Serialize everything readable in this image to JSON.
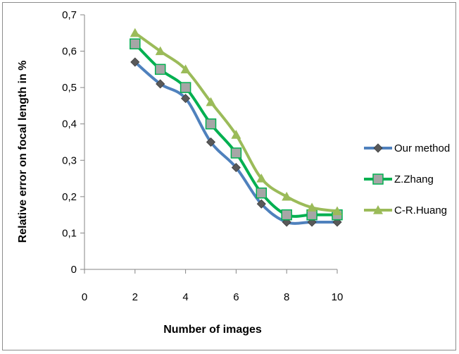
{
  "chart_data": {
    "type": "line",
    "title": "",
    "xlabel": "Number of images",
    "ylabel": "Relative error on focal length in %",
    "xlim": [
      0,
      10
    ],
    "ylim": [
      0,
      0.7
    ],
    "x_ticks": [
      0,
      2,
      4,
      6,
      8,
      10
    ],
    "x_tick_labels": [
      "0",
      "2",
      "4",
      "6",
      "8",
      "10"
    ],
    "y_ticks": [
      0,
      0.1,
      0.2,
      0.3,
      0.4,
      0.5,
      0.6,
      0.7
    ],
    "y_tick_labels": [
      "0",
      "0,1",
      "0,2",
      "0,3",
      "0,4",
      "0,5",
      "0,6",
      "0,7"
    ],
    "grid": false,
    "legend_position": "right",
    "x": [
      2,
      3,
      4,
      5,
      6,
      7,
      8,
      9,
      10
    ],
    "series": [
      {
        "name": "Our method",
        "color": "#4f81bd",
        "marker": "diamond",
        "marker_color": "#595959",
        "values": [
          0.57,
          0.51,
          0.47,
          0.35,
          0.28,
          0.18,
          0.13,
          0.13,
          0.13
        ]
      },
      {
        "name": "Z.Zhang",
        "color": "#00b050",
        "marker": "square",
        "marker_color": "#a6a6a6",
        "values": [
          0.62,
          0.55,
          0.5,
          0.4,
          0.32,
          0.21,
          0.15,
          0.15,
          0.15
        ]
      },
      {
        "name": "C-R.Huang",
        "color": "#9bbb59",
        "marker": "triangle",
        "marker_color": "#9bbb59",
        "values": [
          0.65,
          0.6,
          0.55,
          0.46,
          0.37,
          0.25,
          0.2,
          0.17,
          0.16
        ]
      }
    ]
  }
}
